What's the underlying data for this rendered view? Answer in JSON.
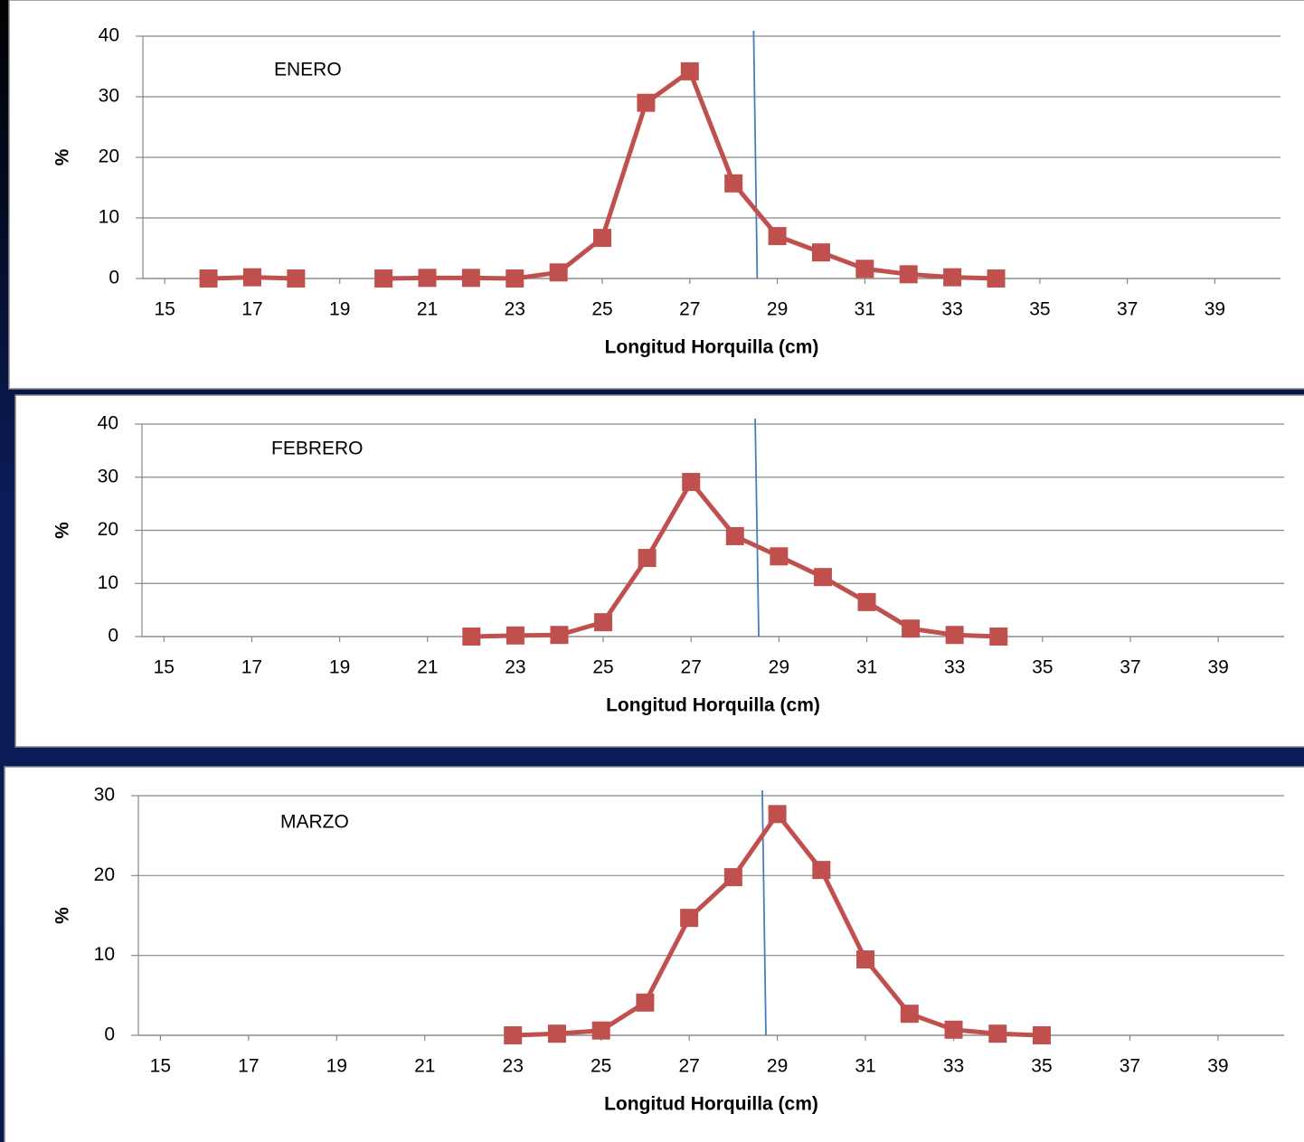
{
  "chart_data": [
    {
      "type": "line",
      "annotation": "ENERO",
      "ylabel": "%",
      "xlabel": "Longitud Horquilla (cm)",
      "x": [
        16,
        17,
        18,
        19,
        20,
        21,
        22,
        23,
        24,
        25,
        26,
        27,
        28,
        29,
        30,
        31,
        32,
        33,
        34
      ],
      "series": [
        {
          "color": "#c0504d",
          "values": [
            0,
            0.2,
            0,
            null,
            0,
            0.1,
            0.1,
            0,
            1.0,
            6.7,
            29.0,
            34.2,
            15.7,
            7.0,
            4.3,
            1.6,
            0.7,
            0.2,
            0
          ]
        }
      ],
      "xlim": [
        14.5,
        40.5
      ],
      "xticks": [
        15,
        17,
        19,
        21,
        23,
        25,
        27,
        29,
        31,
        33,
        35,
        37,
        39
      ],
      "ylim": [
        0,
        40
      ],
      "yticks": [
        0,
        10,
        20,
        30,
        40
      ],
      "grid": true,
      "reference_line": {
        "x": 28.5,
        "color": "#4a7ebb"
      }
    },
    {
      "type": "line",
      "annotation": "FEBRERO",
      "ylabel": "%",
      "xlabel": "Longitud Horquilla (cm)",
      "x": [
        22,
        23,
        24,
        25,
        26,
        27,
        28,
        29,
        30,
        31,
        32,
        33,
        34
      ],
      "series": [
        {
          "color": "#c0504d",
          "values": [
            0,
            0.2,
            0.3,
            2.7,
            14.8,
            29.1,
            18.9,
            15.1,
            11.2,
            6.5,
            1.5,
            0.3,
            0
          ]
        }
      ],
      "xlim": [
        14.5,
        40.5
      ],
      "xticks": [
        15,
        17,
        19,
        21,
        23,
        25,
        27,
        29,
        31,
        33,
        35,
        37,
        39
      ],
      "ylim": [
        0,
        40
      ],
      "yticks": [
        0,
        10,
        20,
        30,
        40
      ],
      "grid": true,
      "reference_line": {
        "x": 28.5,
        "color": "#4a7ebb"
      }
    },
    {
      "type": "line",
      "annotation": "MARZO",
      "ylabel": "%",
      "xlabel": "Longitud Horquilla (cm)",
      "x": [
        23,
        24,
        25,
        26,
        27,
        28,
        29,
        30,
        31,
        32,
        33,
        34,
        35
      ],
      "series": [
        {
          "color": "#c0504d",
          "values": [
            0,
            0.2,
            0.6,
            4.1,
            14.7,
            19.8,
            27.7,
            20.7,
            9.5,
            2.7,
            0.7,
            0.2,
            0
          ]
        }
      ],
      "xlim": [
        14.5,
        40.5
      ],
      "xticks": [
        15,
        17,
        19,
        21,
        23,
        25,
        27,
        29,
        31,
        33,
        35,
        37,
        39
      ],
      "ylim": [
        0,
        30
      ],
      "yticks": [
        0,
        10,
        20,
        30
      ],
      "grid": true,
      "reference_line": {
        "x": 28.7,
        "color": "#4a7ebb"
      }
    }
  ]
}
